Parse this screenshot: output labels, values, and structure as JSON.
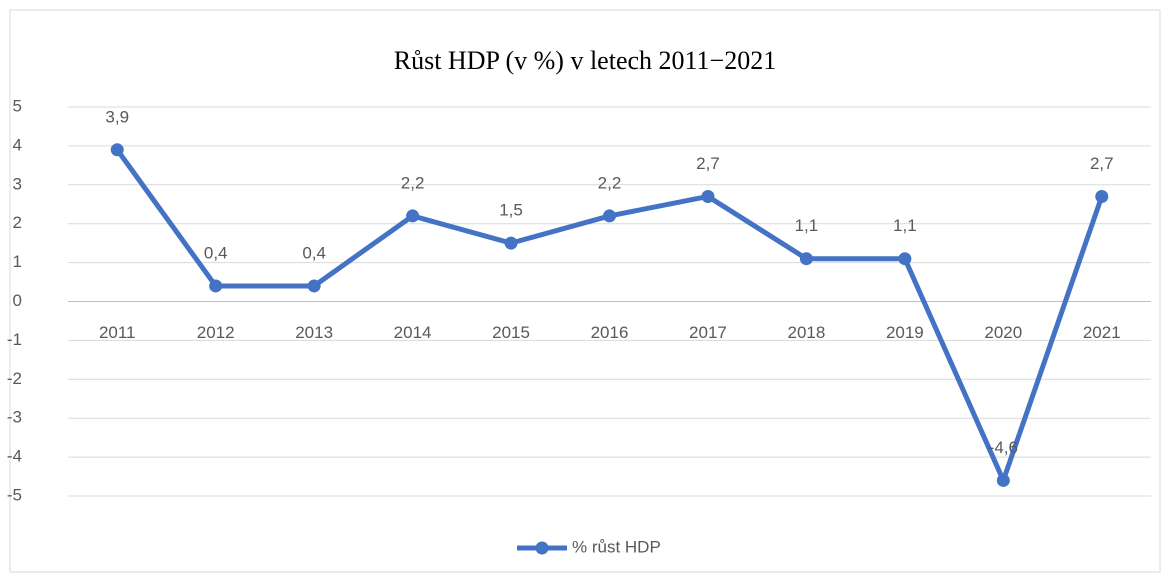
{
  "chart_data": {
    "type": "line",
    "title": "Růst HDP (v %) v letech 2011−2021",
    "categories": [
      "2011",
      "2012",
      "2013",
      "2014",
      "2015",
      "2016",
      "2017",
      "2018",
      "2019",
      "2020",
      "2021"
    ],
    "series": [
      {
        "name": "% růst HDP",
        "color": "#4472c4",
        "values": [
          3.9,
          0.4,
          0.4,
          2.2,
          1.5,
          2.2,
          2.7,
          1.1,
          1.1,
          -4.6,
          2.7
        ],
        "value_labels": [
          "3,9",
          "0,4",
          "0,4",
          "2,2",
          "1,5",
          "2,2",
          "2,7",
          "1,1",
          "1,1",
          "-4,6",
          "2,7"
        ]
      }
    ],
    "ylim": [
      -5,
      5
    ],
    "yticks": [
      -5,
      -4,
      -3,
      -2,
      -1,
      0,
      1,
      2,
      3,
      4,
      5
    ],
    "grid": true,
    "legend": "bottom"
  }
}
